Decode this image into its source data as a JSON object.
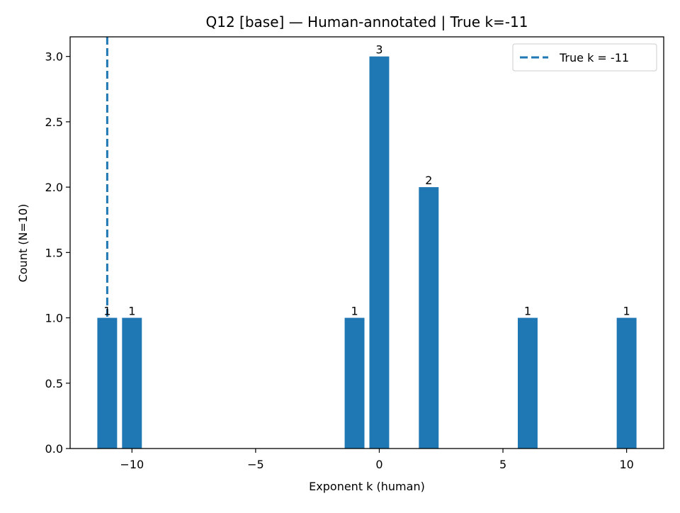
{
  "chart_data": {
    "type": "bar",
    "title": "Q12 [base] — Human-annotated | True k=-11",
    "xlabel": "Exponent k (human)",
    "ylabel": "Count (N=10)",
    "x": [
      -11,
      -10,
      -1,
      0,
      2,
      6,
      10
    ],
    "values": [
      1,
      1,
      1,
      3,
      2,
      1,
      1
    ],
    "value_labels": [
      "1",
      "1",
      "1",
      "3",
      "2",
      "1",
      "1"
    ],
    "xlim": [
      -12.5,
      11.5
    ],
    "ylim": [
      0,
      3.15
    ],
    "xticks": [
      -10,
      -5,
      0,
      5,
      10
    ],
    "xtick_labels": [
      "−10",
      "−5",
      "0",
      "5",
      "10"
    ],
    "yticks": [
      0,
      0.5,
      1,
      1.5,
      2,
      2.5,
      3
    ],
    "ytick_labels": [
      "0.0",
      "0.5",
      "1.0",
      "1.5",
      "2.0",
      "2.5",
      "3.0"
    ],
    "bar_color": "#1f77b4",
    "reference_line": {
      "x": -11,
      "label": "True k = -11",
      "style": "dashed",
      "color": "#1f77b4"
    },
    "grid": false,
    "legend_placement": "top-right"
  }
}
